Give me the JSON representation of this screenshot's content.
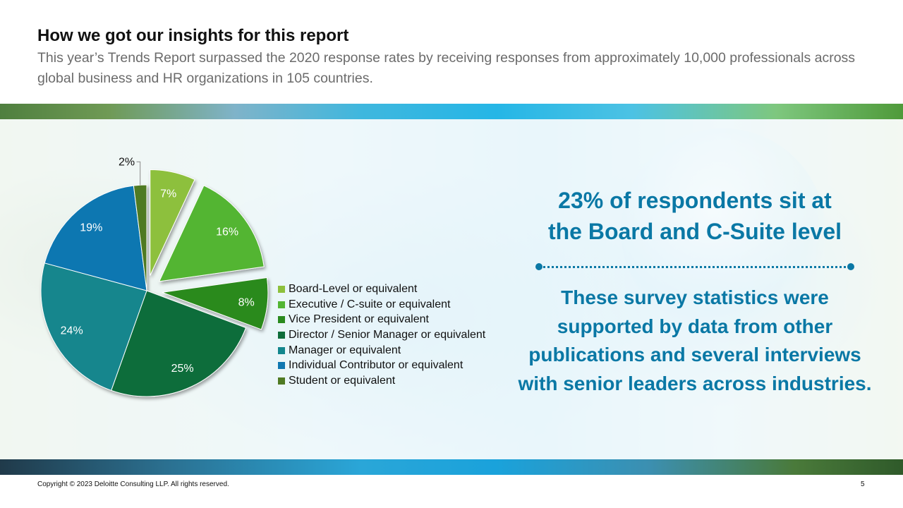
{
  "header": {
    "title": "How we got our insights for this report",
    "subtitle": "This year’s Trends Report surpassed the 2020 response rates by receiving responses from approximately 10,000 professionals across global business and HR organizations in 105 countries."
  },
  "chart_data": {
    "type": "pie",
    "title": "",
    "exploded": [
      "Board-Level or equivalent",
      "Executive / C-suite or equivalent",
      "Vice President or equivalent"
    ],
    "legend_position": "right",
    "slices": [
      {
        "label": "Board-Level or equivalent",
        "value": 7,
        "value_label": "7%",
        "color": "#8dc03c"
      },
      {
        "label": "Executive / C-suite or equivalent",
        "value": 16,
        "value_label": "16%",
        "color": "#52b533"
      },
      {
        "label": "Vice President or equivalent",
        "value": 8,
        "value_label": "8%",
        "color": "#2a8a1e"
      },
      {
        "label": "Director / Senior Manager or equivalent",
        "value": 25,
        "value_label": "25%",
        "color": "#0e6d3a"
      },
      {
        "label": "Manager or equivalent",
        "value": 24,
        "value_label": "24%",
        "color": "#12868d"
      },
      {
        "label": "Individual Contributor or equivalent",
        "value": 19,
        "value_label": "19%",
        "color": "#0f77b1"
      },
      {
        "label": "Student or equivalent",
        "value": 2,
        "value_label": "2%",
        "color": "#4f7a23"
      }
    ]
  },
  "callout": {
    "headline_line1": "23% of respondents sit at",
    "headline_line2": "the Board and C-Suite level",
    "body_line1": "These survey statistics were",
    "body_line2": "supported by data from other",
    "body_line3": "publications and several interviews",
    "body_line4": "with senior leaders across industries."
  },
  "footer": {
    "copyright": "Copyright © 2023 Deloitte Consulting LLP. All rights reserved.",
    "page_number": "5"
  }
}
